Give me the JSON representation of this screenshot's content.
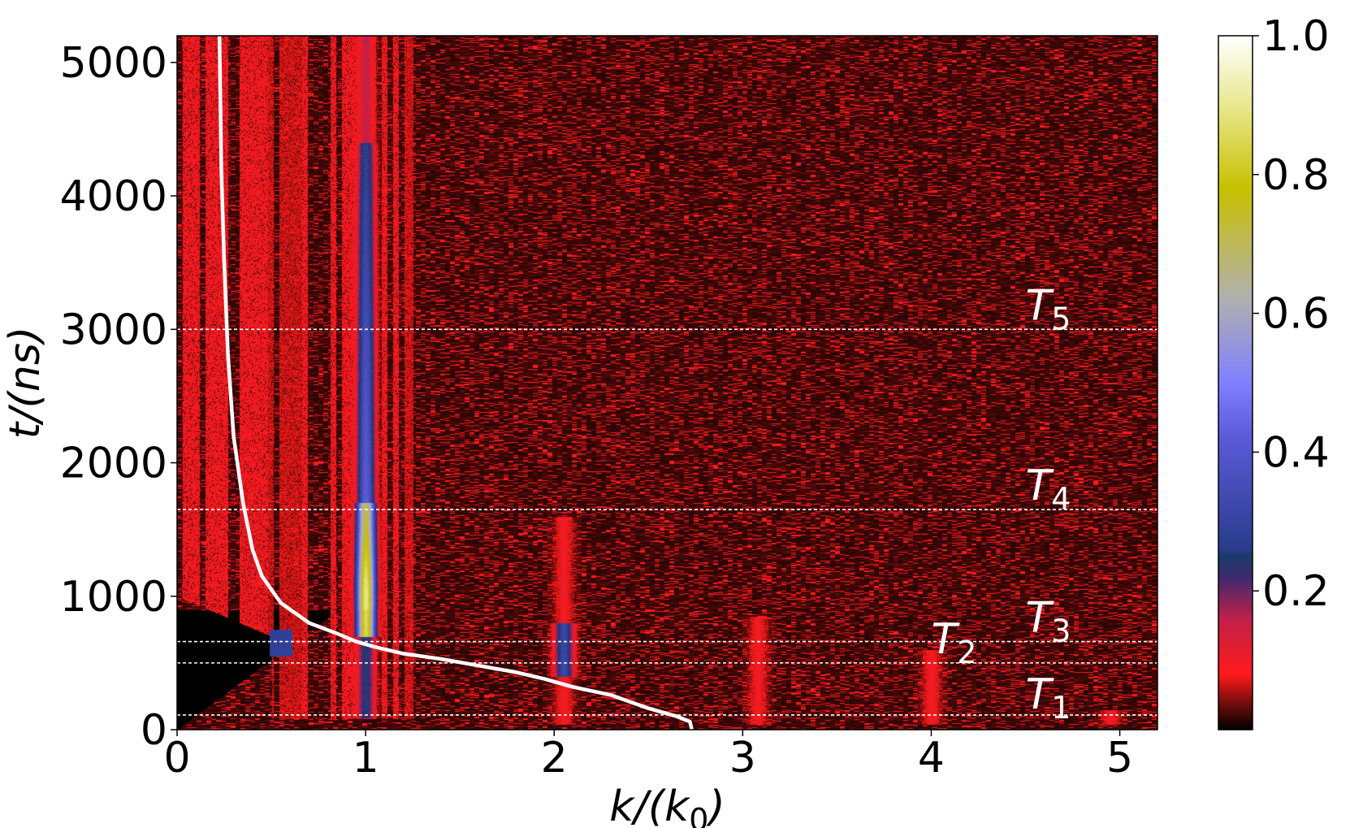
{
  "chart_data": {
    "type": "heatmap",
    "title": "",
    "xlabel": "k/(k_0)",
    "ylabel": "t/(ns)",
    "xlim": [
      0,
      5.2
    ],
    "ylim": [
      0,
      5200
    ],
    "x_ticks": [
      {
        "value": 0,
        "label": "0"
      },
      {
        "value": 1,
        "label": "1"
      },
      {
        "value": 2,
        "label": "2"
      },
      {
        "value": 3,
        "label": "3"
      },
      {
        "value": 4,
        "label": "4"
      },
      {
        "value": 5,
        "label": "5"
      }
    ],
    "y_ticks": [
      {
        "value": 0,
        "label": "0"
      },
      {
        "value": 1000,
        "label": "1000"
      },
      {
        "value": 2000,
        "label": "2000"
      },
      {
        "value": 3000,
        "label": "3000"
      },
      {
        "value": 4000,
        "label": "4000"
      },
      {
        "value": 5000,
        "label": "5000"
      }
    ],
    "colorbar": {
      "range": [
        0,
        1.0
      ],
      "ticks": [
        {
          "value": 0.2,
          "label": "0.2"
        },
        {
          "value": 0.4,
          "label": "0.4"
        },
        {
          "value": 0.6,
          "label": "0.6"
        },
        {
          "value": 0.8,
          "label": "0.8"
        },
        {
          "value": 1.0,
          "label": "1.0"
        }
      ],
      "colormap": [
        {
          "v": 0.0,
          "color": "#000000"
        },
        {
          "v": 0.03,
          "color": "#5a0a0a"
        },
        {
          "v": 0.08,
          "color": "#ff1a1a"
        },
        {
          "v": 0.16,
          "color": "#c0204a"
        },
        {
          "v": 0.22,
          "color": "#3c2a6e"
        },
        {
          "v": 0.25,
          "color": "#1a3a6a"
        },
        {
          "v": 0.26,
          "color": "#2a3c8c"
        },
        {
          "v": 0.42,
          "color": "#5a5ad8"
        },
        {
          "v": 0.5,
          "color": "#8080ff"
        },
        {
          "v": 0.62,
          "color": "#b0b0b0"
        },
        {
          "v": 0.78,
          "color": "#c8c000"
        },
        {
          "v": 0.9,
          "color": "#e8e890"
        },
        {
          "v": 1.0,
          "color": "#ffffff"
        }
      ]
    },
    "period_lines": [
      {
        "name": "T",
        "sub": "1",
        "t": 110
      },
      {
        "name": "T",
        "sub": "2",
        "t": 500
      },
      {
        "name": "T",
        "sub": "3",
        "t": 660
      },
      {
        "name": "T",
        "sub": "4",
        "t": 1650
      },
      {
        "name": "T",
        "sub": "5",
        "t": 3000
      }
    ],
    "white_curve": {
      "points": [
        [
          2.73,
          0
        ],
        [
          2.72,
          60
        ],
        [
          2.65,
          100
        ],
        [
          2.5,
          160
        ],
        [
          2.3,
          260
        ],
        [
          2.1,
          320
        ],
        [
          1.95,
          380
        ],
        [
          1.8,
          430
        ],
        [
          1.6,
          480
        ],
        [
          1.4,
          530
        ],
        [
          1.2,
          570
        ],
        [
          1.05,
          620
        ],
        [
          0.95,
          660
        ],
        [
          0.85,
          720
        ],
        [
          0.7,
          800
        ],
        [
          0.55,
          950
        ],
        [
          0.45,
          1150
        ],
        [
          0.4,
          1350
        ],
        [
          0.35,
          1700
        ],
        [
          0.3,
          2200
        ],
        [
          0.27,
          2800
        ],
        [
          0.25,
          3500
        ],
        [
          0.235,
          4200
        ],
        [
          0.225,
          5200
        ]
      ]
    },
    "features": {
      "red_band_k": [
        0.0,
        1.25
      ],
      "main_peak_k": 1.0,
      "harmonic_peaks": [
        {
          "k": 2.05,
          "t_top": 1600
        },
        {
          "k": 3.08,
          "t_top": 850
        },
        {
          "k": 4.0,
          "t_top": 600
        },
        {
          "k": 4.95,
          "t_top": 150
        }
      ]
    },
    "colors": {
      "background": "#2e0505",
      "curve": "#ffffff",
      "dashed_line": "#ffffff"
    }
  }
}
